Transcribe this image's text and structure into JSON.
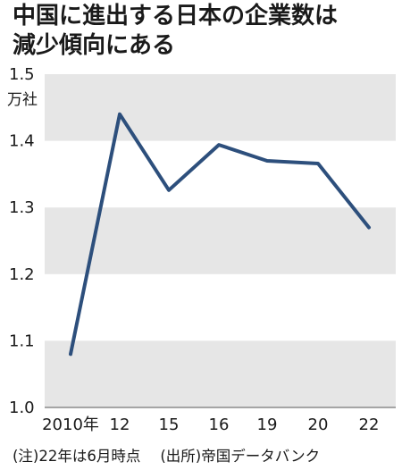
{
  "title": {
    "line1": "中国に進出する日本の企業数は",
    "line2": "減少傾向にある"
  },
  "colors": {
    "line": "#2d4f7c",
    "band": "#e6e6e6",
    "axis": "#555555"
  },
  "note": {
    "left": "(注)22年は6月時点",
    "right": "(出所)帝国データバンク"
  },
  "chart_data": {
    "type": "line",
    "ylabel": "万社",
    "x": [
      "2010年",
      "12",
      "15",
      "16",
      "19",
      "20",
      "22"
    ],
    "series": [
      {
        "values": [
          1.08,
          1.44,
          1.326,
          1.394,
          1.37,
          1.366,
          1.27
        ]
      }
    ],
    "ylim": [
      1.0,
      1.5
    ],
    "yticks": [
      "1.0",
      "1.1",
      "1.2",
      "1.3",
      "1.4",
      "1.5"
    ],
    "grid": "alternating horizontal bands"
  }
}
